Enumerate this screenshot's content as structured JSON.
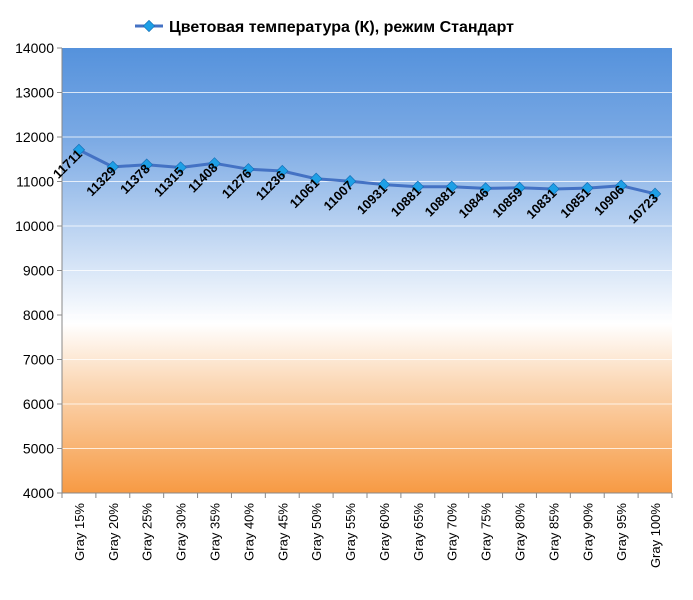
{
  "chart_data": {
    "type": "line",
    "legend_position": "top",
    "grid": true,
    "categories": [
      "Gray 15%",
      "Gray 20%",
      "Gray 25%",
      "Gray 30%",
      "Gray 35%",
      "Gray 40%",
      "Gray 45%",
      "Gray 50%",
      "Gray 55%",
      "Gray 60%",
      "Gray 65%",
      "Gray 70%",
      "Gray 75%",
      "Gray 80%",
      "Gray 85%",
      "Gray 90%",
      "Gray 95%",
      "Gray 100%"
    ],
    "series": [
      {
        "name": "Цветовая температура (К), режим Стандарт",
        "values": [
          11711,
          11329,
          11378,
          11315,
          11408,
          11276,
          11236,
          11061,
          11007,
          10931,
          10881,
          10881,
          10846,
          10859,
          10831,
          10851,
          10906,
          10723
        ],
        "color": "#4472C4",
        "marker_color": "#1EA0E6"
      }
    ],
    "ylim": [
      4000,
      14000
    ],
    "yticks": [
      4000,
      5000,
      6000,
      7000,
      8000,
      9000,
      10000,
      11000,
      12000,
      13000,
      14000
    ],
    "background_gradient": {
      "top": "#5592DC",
      "middle": "#FFFFFF",
      "bottom": "#F79A43"
    }
  }
}
